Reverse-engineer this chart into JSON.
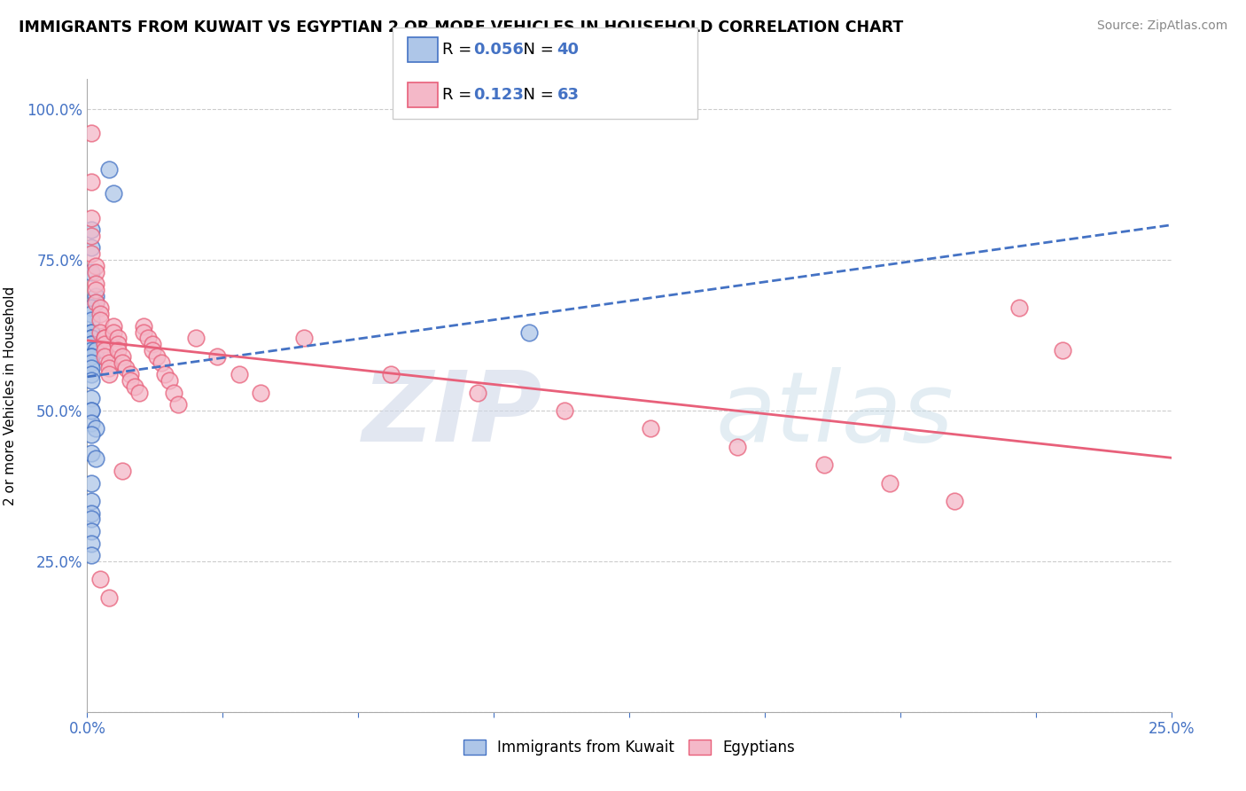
{
  "title": "IMMIGRANTS FROM KUWAIT VS EGYPTIAN 2 OR MORE VEHICLES IN HOUSEHOLD CORRELATION CHART",
  "source": "Source: ZipAtlas.com",
  "ylabel": "2 or more Vehicles in Household",
  "xlim": [
    0.0,
    0.25
  ],
  "ylim": [
    0.0,
    1.05
  ],
  "xtick_vals": [
    0.0,
    0.03125,
    0.0625,
    0.09375,
    0.125,
    0.15625,
    0.1875,
    0.21875,
    0.25
  ],
  "xtick_labels_show": {
    "0.0": "0.0%",
    "0.25": "25.0%"
  },
  "ytick_vals": [
    0.0,
    0.25,
    0.5,
    0.75,
    1.0
  ],
  "ytick_labels": [
    "",
    "25.0%",
    "50.0%",
    "75.0%",
    "100.0%"
  ],
  "kuwait_color": "#aec6e8",
  "kuwait_edge_color": "#4472c4",
  "egyptian_color": "#f4b8c8",
  "egyptian_edge_color": "#e8607a",
  "kuwait_line_color": "#4472c4",
  "egyptian_line_color": "#e8607a",
  "R_kuwait": 0.056,
  "N_kuwait": 40,
  "R_egyptian": 0.123,
  "N_egyptian": 63,
  "legend_label_kuwait": "Immigrants from Kuwait",
  "legend_label_egyptian": "Egyptians",
  "kuwait_x": [
    0.005,
    0.006,
    0.001,
    0.001,
    0.001,
    0.002,
    0.002,
    0.001,
    0.001,
    0.001,
    0.001,
    0.001,
    0.001,
    0.001,
    0.001,
    0.001,
    0.001,
    0.002,
    0.001,
    0.001,
    0.001,
    0.001,
    0.001,
    0.001,
    0.001,
    0.001,
    0.001,
    0.001,
    0.002,
    0.001,
    0.001,
    0.002,
    0.001,
    0.001,
    0.001,
    0.001,
    0.001,
    0.001,
    0.001,
    0.102
  ],
  "kuwait_y": [
    0.9,
    0.86,
    0.8,
    0.77,
    0.73,
    0.69,
    0.68,
    0.67,
    0.66,
    0.65,
    0.63,
    0.63,
    0.62,
    0.62,
    0.61,
    0.61,
    0.6,
    0.6,
    0.59,
    0.59,
    0.58,
    0.57,
    0.56,
    0.55,
    0.52,
    0.5,
    0.5,
    0.48,
    0.47,
    0.46,
    0.43,
    0.42,
    0.38,
    0.35,
    0.33,
    0.32,
    0.3,
    0.28,
    0.26,
    0.63
  ],
  "egyptian_x": [
    0.001,
    0.001,
    0.001,
    0.001,
    0.001,
    0.002,
    0.002,
    0.002,
    0.002,
    0.002,
    0.003,
    0.003,
    0.003,
    0.003,
    0.004,
    0.004,
    0.004,
    0.004,
    0.004,
    0.005,
    0.005,
    0.005,
    0.006,
    0.006,
    0.007,
    0.007,
    0.007,
    0.008,
    0.008,
    0.009,
    0.01,
    0.01,
    0.011,
    0.012,
    0.013,
    0.013,
    0.014,
    0.015,
    0.015,
    0.016,
    0.017,
    0.018,
    0.019,
    0.02,
    0.021,
    0.025,
    0.03,
    0.035,
    0.04,
    0.05,
    0.07,
    0.09,
    0.11,
    0.13,
    0.15,
    0.17,
    0.185,
    0.2,
    0.215,
    0.225,
    0.003,
    0.005,
    0.008
  ],
  "egyptian_y": [
    0.96,
    0.88,
    0.82,
    0.79,
    0.76,
    0.74,
    0.73,
    0.71,
    0.7,
    0.68,
    0.67,
    0.66,
    0.65,
    0.63,
    0.62,
    0.62,
    0.61,
    0.6,
    0.59,
    0.58,
    0.57,
    0.56,
    0.64,
    0.63,
    0.62,
    0.61,
    0.6,
    0.59,
    0.58,
    0.57,
    0.56,
    0.55,
    0.54,
    0.53,
    0.64,
    0.63,
    0.62,
    0.61,
    0.6,
    0.59,
    0.58,
    0.56,
    0.55,
    0.53,
    0.51,
    0.62,
    0.59,
    0.56,
    0.53,
    0.62,
    0.56,
    0.53,
    0.5,
    0.47,
    0.44,
    0.41,
    0.38,
    0.35,
    0.67,
    0.6,
    0.22,
    0.19,
    0.4
  ]
}
